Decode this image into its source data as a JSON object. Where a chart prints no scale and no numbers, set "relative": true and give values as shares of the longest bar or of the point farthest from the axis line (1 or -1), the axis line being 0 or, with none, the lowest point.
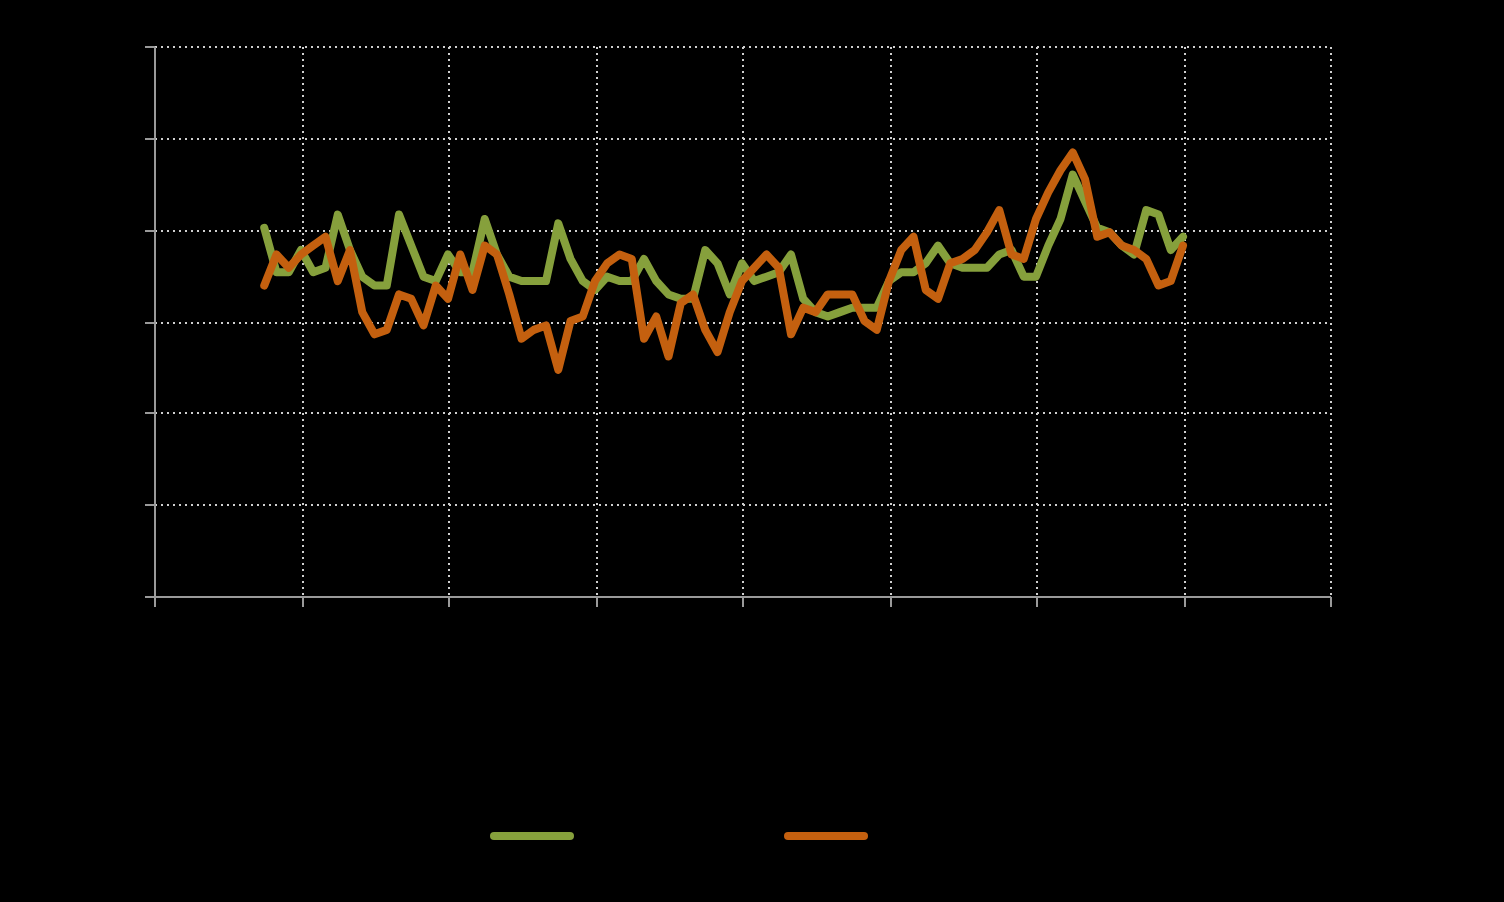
{
  "chart_data": {
    "type": "line",
    "relative": true,
    "grid": true,
    "categories": [
      null,
      null,
      null,
      null,
      null,
      null,
      null,
      null,
      null,
      null,
      null,
      null,
      null,
      null,
      null,
      null,
      null,
      null,
      null,
      null,
      null,
      null,
      null,
      null,
      null,
      null,
      null,
      null,
      null,
      null,
      null,
      null,
      null,
      null,
      null,
      null,
      null,
      null,
      null,
      null,
      null,
      null,
      null,
      null,
      null,
      null,
      null,
      null,
      null,
      null,
      null,
      null,
      null,
      null,
      null,
      null,
      null,
      null,
      null,
      null,
      null,
      null,
      null,
      null,
      null,
      null,
      null,
      null,
      null,
      null,
      null,
      null,
      null,
      null,
      null,
      null,
      null,
      null,
      null,
      null,
      null,
      null,
      null,
      null,
      null,
      null,
      null,
      null,
      null,
      null,
      null,
      null,
      null,
      null,
      null,
      null,
      null
    ],
    "series": [
      {
        "color": "#86a03c",
        "values": [
          null,
          null,
          null,
          null,
          null,
          null,
          null,
          null,
          null,
          0.83,
          0.73,
          0.73,
          0.78,
          0.73,
          0.74,
          0.86,
          0.78,
          0.72,
          0.7,
          0.7,
          0.86,
          0.79,
          0.72,
          0.71,
          0.77,
          0.73,
          0.73,
          0.85,
          0.77,
          0.72,
          0.71,
          0.71,
          0.71,
          0.84,
          0.76,
          0.71,
          0.69,
          0.72,
          0.71,
          0.71,
          0.76,
          0.71,
          0.68,
          0.67,
          0.67,
          0.78,
          0.75,
          0.68,
          0.75,
          0.71,
          0.72,
          0.73,
          0.77,
          0.67,
          0.64,
          0.63,
          0.64,
          0.65,
          0.65,
          0.65,
          0.71,
          0.73,
          0.73,
          0.75,
          0.79,
          0.75,
          0.74,
          0.74,
          0.74,
          0.77,
          0.78,
          0.72,
          0.72,
          0.79,
          0.85,
          0.95,
          0.89,
          0.83,
          0.82,
          0.79,
          0.77,
          0.87,
          0.86,
          0.78,
          0.81,
          null,
          null,
          null,
          null,
          null,
          null,
          null,
          null,
          null,
          null,
          null,
          null
        ]
      },
      {
        "color": "#c4600f",
        "values": [
          null,
          null,
          null,
          null,
          null,
          null,
          null,
          null,
          null,
          0.7,
          0.77,
          0.74,
          0.77,
          0.79,
          0.81,
          0.71,
          0.78,
          0.64,
          0.59,
          0.6,
          0.68,
          0.67,
          0.61,
          0.7,
          0.67,
          0.77,
          0.69,
          0.79,
          0.77,
          0.68,
          0.58,
          0.6,
          0.61,
          0.51,
          0.62,
          0.63,
          0.71,
          0.75,
          0.77,
          0.76,
          0.58,
          0.63,
          0.54,
          0.66,
          0.68,
          0.6,
          0.55,
          0.64,
          0.71,
          0.74,
          0.77,
          0.74,
          0.59,
          0.65,
          0.64,
          0.68,
          0.68,
          0.68,
          0.62,
          0.6,
          0.71,
          0.78,
          0.81,
          0.69,
          0.67,
          0.75,
          0.76,
          0.78,
          0.82,
          0.87,
          0.77,
          0.76,
          0.85,
          0.91,
          0.96,
          1,
          0.94,
          0.81,
          0.82,
          0.79,
          0.78,
          0.76,
          0.7,
          0.71,
          0.79,
          null,
          null,
          null,
          null,
          null,
          null,
          null,
          null,
          null,
          null,
          null,
          null
        ]
      }
    ]
  }
}
